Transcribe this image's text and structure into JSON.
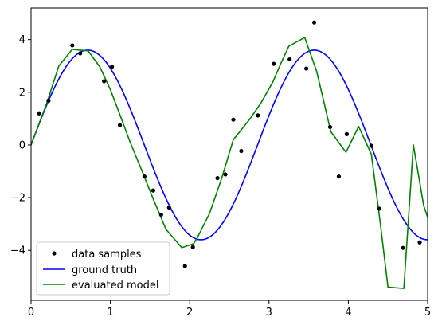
{
  "chart_data": {
    "type": "line",
    "title": "",
    "xlabel": "",
    "ylabel": "",
    "xlim": [
      0,
      5
    ],
    "ylim": [
      -5.9,
      5.2
    ],
    "xticks": [
      0,
      1,
      2,
      3,
      4,
      5
    ],
    "yticks": [
      -4,
      -2,
      0,
      2,
      4
    ],
    "xtick_labels": [
      "0",
      "1",
      "2",
      "3",
      "4",
      "5"
    ],
    "ytick_labels": [
      "−4",
      "−2",
      "0",
      "2",
      "4"
    ],
    "grid": false,
    "legend_position": "lower-left",
    "series": [
      {
        "name": "data samples",
        "kind": "scatter",
        "color": "#000000",
        "x": [
          0.1,
          0.22,
          0.52,
          0.62,
          0.92,
          1.02,
          1.12,
          1.43,
          1.54,
          1.64,
          1.74,
          1.94,
          2.04,
          2.35,
          2.45,
          2.55,
          2.65,
          2.86,
          3.06,
          3.26,
          3.47,
          3.57,
          3.77,
          3.88,
          3.98,
          4.29,
          4.39,
          4.69,
          4.9
        ],
        "y": [
          1.2,
          1.68,
          3.78,
          3.48,
          2.42,
          2.97,
          0.75,
          -1.2,
          -1.73,
          -2.65,
          -2.38,
          -4.6,
          -3.88,
          -1.26,
          -1.12,
          0.96,
          -0.23,
          1.12,
          3.08,
          3.25,
          2.9,
          4.65,
          0.68,
          -1.2,
          0.41,
          -0.03,
          -2.42,
          -3.91,
          -3.7
        ]
      },
      {
        "name": "ground truth",
        "kind": "line",
        "color": "#0000ff",
        "function": "3.6*sin(2.2*x)"
      },
      {
        "name": "evaluated model",
        "kind": "line",
        "color": "#008000",
        "x": [
          0,
          0.1,
          0.2,
          0.35,
          0.52,
          0.72,
          0.87,
          1.0,
          1.12,
          1.25,
          1.4,
          1.54,
          1.7,
          1.9,
          2.05,
          2.1,
          2.25,
          2.4,
          2.55,
          2.75,
          2.9,
          3.05,
          3.15,
          3.25,
          3.45,
          3.6,
          3.78,
          3.97,
          4.13,
          4.29,
          4.4,
          4.5,
          4.7,
          4.82,
          4.95,
          5.0
        ],
        "y": [
          0,
          0.8,
          1.6,
          3.0,
          3.63,
          3.57,
          2.95,
          2.1,
          1.15,
          0.1,
          -1.0,
          -2.05,
          -3.2,
          -3.9,
          -3.75,
          -3.5,
          -2.6,
          -1.3,
          0.2,
          0.95,
          1.6,
          2.4,
          3.1,
          3.75,
          4.08,
          2.8,
          0.5,
          -0.28,
          0.7,
          -0.35,
          -2.9,
          -5.4,
          -5.45,
          0.0,
          -2.3,
          -2.75
        ]
      }
    ]
  }
}
